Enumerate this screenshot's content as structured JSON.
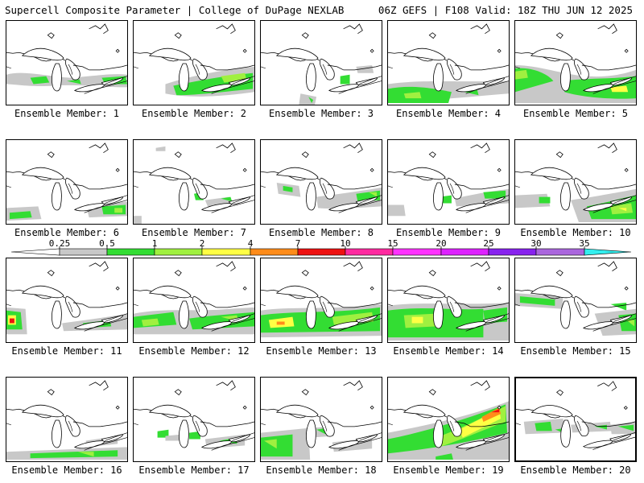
{
  "header": {
    "title_left": "Supercell Composite Parameter | College of DuPage NEXLAB",
    "title_right": "06Z GEFS | F108 Valid: 18Z THU JUN 12 2025"
  },
  "legend": {
    "ticks": [
      "0.25",
      "0.5",
      "1",
      "2",
      "4",
      "7",
      "10",
      "15",
      "20",
      "25",
      "30",
      "35"
    ],
    "colors": [
      "#ffffff",
      "#c8c8c8",
      "#33dd33",
      "#a0f040",
      "#ffff44",
      "#ff8c1a",
      "#ee1111",
      "#ff2aa0",
      "#ff33ff",
      "#dd22ff",
      "#8822ee",
      "#aa66dd",
      "#33eeee"
    ]
  },
  "members": [
    {
      "label": "Ensemble Member: 1",
      "selected": false
    },
    {
      "label": "Ensemble Member: 2",
      "selected": false
    },
    {
      "label": "Ensemble Member: 3",
      "selected": false
    },
    {
      "label": "Ensemble Member: 4",
      "selected": false
    },
    {
      "label": "Ensemble Member: 5",
      "selected": false
    },
    {
      "label": "Ensemble Member: 6",
      "selected": false
    },
    {
      "label": "Ensemble Member: 7",
      "selected": false
    },
    {
      "label": "Ensemble Member: 8",
      "selected": false
    },
    {
      "label": "Ensemble Member: 9",
      "selected": false
    },
    {
      "label": "Ensemble Member: 10",
      "selected": false
    },
    {
      "label": "Ensemble Member: 11",
      "selected": false
    },
    {
      "label": "Ensemble Member: 12",
      "selected": false
    },
    {
      "label": "Ensemble Member: 13",
      "selected": false
    },
    {
      "label": "Ensemble Member: 14",
      "selected": false
    },
    {
      "label": "Ensemble Member: 15",
      "selected": false
    },
    {
      "label": "Ensemble Member: 16",
      "selected": false
    },
    {
      "label": "Ensemble Member: 17",
      "selected": false
    },
    {
      "label": "Ensemble Member: 18",
      "selected": false
    },
    {
      "label": "Ensemble Member: 19",
      "selected": false
    },
    {
      "label": "Ensemble Member: 20",
      "selected": true
    }
  ]
}
